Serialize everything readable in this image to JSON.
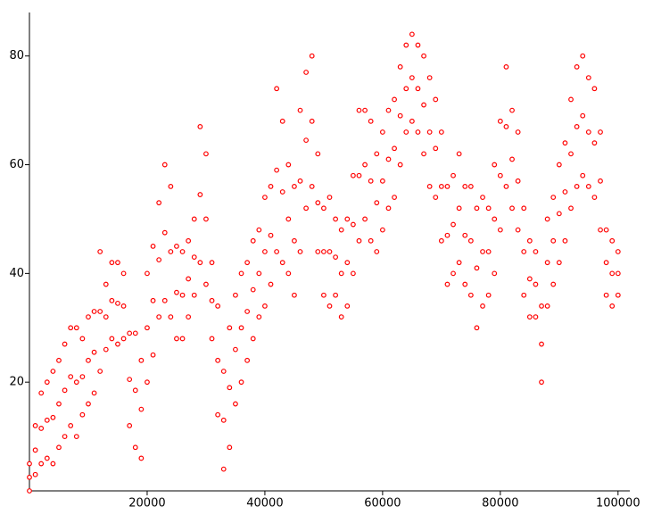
{
  "chart_data": {
    "type": "scatter",
    "color": "#ff0000",
    "xlim": [
      0,
      102000
    ],
    "ylim": [
      0,
      88
    ],
    "xticks": [
      20000,
      40000,
      60000,
      80000,
      100000
    ],
    "yticks": [
      20,
      40,
      60,
      80
    ],
    "x": [
      0,
      0,
      0,
      1000,
      1000,
      1000,
      2000,
      2000,
      2000,
      3000,
      3000,
      3000,
      4000,
      4000,
      4000,
      5000,
      5000,
      5000,
      6000,
      6000,
      6000,
      7000,
      7000,
      7000,
      8000,
      8000,
      8000,
      9000,
      9000,
      9000,
      10000,
      10000,
      10000,
      11000,
      11000,
      11000,
      12000,
      12000,
      12000,
      13000,
      13000,
      13000,
      14000,
      14000,
      14000,
      15000,
      15000,
      15000,
      16000,
      16000,
      16000,
      17000,
      17000,
      17000,
      18000,
      18000,
      18000,
      19000,
      19000,
      19000,
      20000,
      20000,
      20000,
      21000,
      21000,
      21000,
      22000,
      22000,
      22000,
      23000,
      23000,
      23000,
      24000,
      24000,
      24000,
      25000,
      25000,
      25000,
      26000,
      26000,
      26000,
      27000,
      27000,
      27000,
      28000,
      28000,
      28000,
      29000,
      29000,
      29000,
      30000,
      30000,
      30000,
      31000,
      31000,
      31000,
      32000,
      32000,
      32000,
      33000,
      33000,
      33000,
      34000,
      34000,
      34000,
      35000,
      35000,
      35000,
      36000,
      36000,
      36000,
      37000,
      37000,
      37000,
      38000,
      38000,
      38000,
      39000,
      39000,
      39000,
      40000,
      40000,
      40000,
      41000,
      41000,
      41000,
      42000,
      42000,
      42000,
      43000,
      43000,
      43000,
      44000,
      44000,
      44000,
      45000,
      45000,
      45000,
      46000,
      46000,
      46000,
      47000,
      47000,
      47000,
      48000,
      48000,
      48000,
      49000,
      49000,
      49000,
      50000,
      50000,
      50000,
      51000,
      51000,
      51000,
      52000,
      52000,
      52000,
      53000,
      53000,
      53000,
      54000,
      54000,
      54000,
      55000,
      55000,
      55000,
      56000,
      56000,
      56000,
      57000,
      57000,
      57000,
      58000,
      58000,
      58000,
      59000,
      59000,
      59000,
      60000,
      60000,
      60000,
      61000,
      61000,
      61000,
      62000,
      62000,
      62000,
      63000,
      63000,
      63000,
      64000,
      64000,
      64000,
      65000,
      65000,
      65000,
      66000,
      66000,
      66000,
      67000,
      67000,
      67000,
      68000,
      68000,
      68000,
      69000,
      69000,
      69000,
      70000,
      70000,
      70000,
      71000,
      71000,
      71000,
      72000,
      72000,
      72000,
      73000,
      73000,
      73000,
      74000,
      74000,
      74000,
      75000,
      75000,
      75000,
      76000,
      76000,
      76000,
      77000,
      77000,
      77000,
      78000,
      78000,
      78000,
      79000,
      79000,
      79000,
      80000,
      80000,
      80000,
      81000,
      81000,
      81000,
      82000,
      82000,
      82000,
      83000,
      83000,
      83000,
      84000,
      84000,
      84000,
      85000,
      85000,
      85000,
      86000,
      86000,
      86000,
      87000,
      87000,
      87000,
      88000,
      88000,
      88000,
      89000,
      89000,
      89000,
      90000,
      90000,
      90000,
      91000,
      91000,
      91000,
      92000,
      92000,
      92000,
      93000,
      93000,
      93000,
      94000,
      94000,
      94000,
      95000,
      95000,
      95000,
      96000,
      96000,
      96000,
      97000,
      97000,
      97000,
      98000,
      98000,
      98000,
      99000,
      99000,
      99000,
      100000,
      100000,
      100000
    ],
    "y": [
      0,
      2.5,
      5,
      3,
      7.5,
      12,
      5,
      11.5,
      18,
      6,
      13,
      20,
      5,
      13.5,
      22,
      8,
      16,
      24,
      10,
      18.5,
      27,
      12,
      21,
      30,
      10,
      20,
      30,
      14,
      21,
      28,
      16,
      24,
      32,
      18,
      25.5,
      33,
      22,
      33,
      44,
      26,
      32,
      38,
      28,
      35,
      42,
      27,
      34.5,
      42,
      28,
      34,
      40,
      12,
      20.5,
      29,
      8,
      18.5,
      29,
      6,
      15,
      24,
      20,
      30,
      40,
      25,
      35,
      45,
      32,
      42.5,
      53,
      35,
      47.5,
      60,
      32,
      44,
      56,
      28,
      36.5,
      45,
      28,
      36,
      44,
      32,
      39,
      46,
      36,
      43,
      50,
      42,
      54.5,
      67,
      38,
      50,
      62,
      28,
      35,
      42,
      14,
      24,
      34,
      4,
      13,
      22,
      8,
      19,
      30,
      16,
      26,
      36,
      20,
      30,
      40,
      24,
      33,
      42,
      28,
      37,
      46,
      32,
      40,
      48,
      34,
      44,
      54,
      38,
      47,
      56,
      44,
      59,
      74,
      42,
      55,
      68,
      40,
      50,
      60,
      36,
      46,
      56,
      44,
      57,
      70,
      52,
      64.5,
      77,
      56,
      68,
      80,
      44,
      53,
      62,
      36,
      44,
      52,
      34,
      44,
      54,
      36,
      43,
      50,
      32,
      40,
      48,
      34,
      42,
      50,
      40,
      49,
      58,
      46,
      58,
      70,
      50,
      60,
      70,
      46,
      57,
      68,
      44,
      53,
      62,
      48,
      57,
      66,
      52,
      61,
      70,
      54,
      63,
      72,
      60,
      69,
      78,
      66,
      74,
      82,
      68,
      76,
      84,
      66,
      74,
      82,
      62,
      71,
      80,
      56,
      66,
      76,
      54,
      63,
      72,
      46,
      56,
      66,
      38,
      47,
      56,
      40,
      49,
      58,
      42,
      52,
      62,
      38,
      47,
      56,
      36,
      46,
      56,
      30,
      41,
      52,
      34,
      44,
      54,
      36,
      44,
      52,
      40,
      50,
      60,
      48,
      58,
      68,
      56,
      67,
      78,
      52,
      61,
      70,
      48,
      57,
      66,
      36,
      44,
      52,
      32,
      39,
      46,
      32,
      38,
      44,
      20,
      27,
      34,
      34,
      42,
      50,
      38,
      46,
      54,
      42,
      51,
      60,
      46,
      55,
      64,
      52,
      62,
      72,
      56,
      67,
      78,
      58,
      69,
      80,
      56,
      66,
      76,
      54,
      64,
      74,
      48,
      57,
      66,
      36,
      42,
      48,
      34,
      40,
      46,
      36,
      40,
      44
    ]
  }
}
